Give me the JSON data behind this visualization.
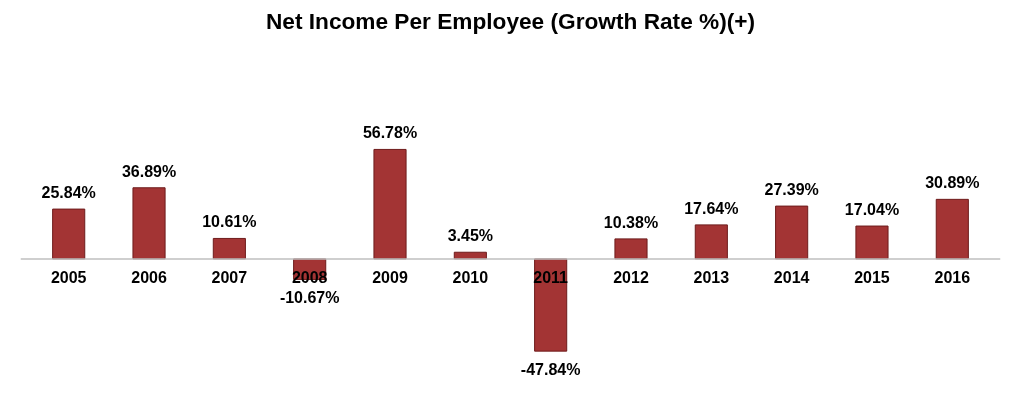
{
  "chart_data": {
    "type": "bar",
    "title": "Net Income Per Employee (Growth Rate %)(+)",
    "categories": [
      "2005",
      "2006",
      "2007",
      "2008",
      "2009",
      "2010",
      "2011",
      "2012",
      "2013",
      "2014",
      "2015",
      "2016"
    ],
    "values": [
      25.84,
      36.89,
      10.61,
      -10.67,
      56.78,
      3.45,
      -47.84,
      10.38,
      17.64,
      27.39,
      17.04,
      30.89
    ],
    "value_labels": [
      "25.84%",
      "36.89%",
      "10.61%",
      "-10.67%",
      "56.78%",
      "3.45%",
      "-47.84%",
      "10.38%",
      "17.64%",
      "27.39%",
      "17.04%",
      "30.89%"
    ],
    "color": "#a33434",
    "grid": false
  }
}
